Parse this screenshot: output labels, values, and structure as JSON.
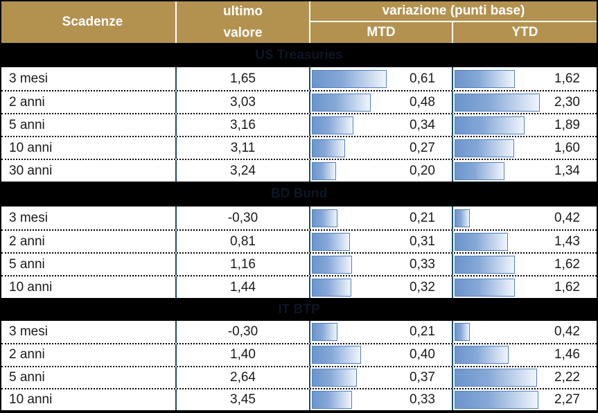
{
  "header": {
    "scadenze": "Scadenze",
    "ultimo_line1": "ultimo",
    "ultimo_line2": "valore",
    "variazione": "variazione (punti base)",
    "mtd": "MTD",
    "ytd": "YTD"
  },
  "colors": {
    "header_bg": "#b3914f",
    "header_text": "#ffffff",
    "band_bg": "#000000",
    "band_text": "#0d1626",
    "divider": "#1b4a68",
    "bar_border": "#4f81bd",
    "bar_gradient_start": "#6b95cd",
    "bar_gradient_end": "#f0f5fc",
    "row_text": "#1a1a1a"
  },
  "sections": [
    {
      "title": "US Treasuries",
      "rows": [
        {
          "scadenza": "3 mesi",
          "ultimo": "1,65",
          "mtd_label": "0,61",
          "mtd": 0.61,
          "ytd_label": "1,62",
          "ytd": 1.62
        },
        {
          "scadenza": "2 anni",
          "ultimo": "3,03",
          "mtd_label": "0,48",
          "mtd": 0.48,
          "ytd_label": "2,30",
          "ytd": 2.3
        },
        {
          "scadenza": "5 anni",
          "ultimo": "3,16",
          "mtd_label": "0,34",
          "mtd": 0.34,
          "ytd_label": "1,89",
          "ytd": 1.89
        },
        {
          "scadenza": "10 anni",
          "ultimo": "3,11",
          "mtd_label": "0,27",
          "mtd": 0.27,
          "ytd_label": "1,60",
          "ytd": 1.6
        },
        {
          "scadenza": "30 anni",
          "ultimo": "3,24",
          "mtd_label": "0,20",
          "mtd": 0.2,
          "ytd_label": "1,34",
          "ytd": 1.34
        }
      ]
    },
    {
      "title": "BD Bund",
      "rows": [
        {
          "scadenza": "3 mesi",
          "ultimo": "-0,30",
          "mtd_label": "0,21",
          "mtd": 0.21,
          "ytd_label": "0,42",
          "ytd": 0.42
        },
        {
          "scadenza": "2 anni",
          "ultimo": "0,81",
          "mtd_label": "0,31",
          "mtd": 0.31,
          "ytd_label": "1,43",
          "ytd": 1.43
        },
        {
          "scadenza": "5 anni",
          "ultimo": "1,16",
          "mtd_label": "0,33",
          "mtd": 0.33,
          "ytd_label": "1,62",
          "ytd": 1.62
        },
        {
          "scadenza": "10 anni",
          "ultimo": "1,44",
          "mtd_label": "0,32",
          "mtd": 0.32,
          "ytd_label": "1,62",
          "ytd": 1.62
        }
      ]
    },
    {
      "title": "IT BTP",
      "rows": [
        {
          "scadenza": "3 mesi",
          "ultimo": "-0,30",
          "mtd_label": "0,21",
          "mtd": 0.21,
          "ytd_label": "0,42",
          "ytd": 0.42
        },
        {
          "scadenza": "2 anni",
          "ultimo": "1,40",
          "mtd_label": "0,40",
          "mtd": 0.4,
          "ytd_label": "1,46",
          "ytd": 1.46
        },
        {
          "scadenza": "5 anni",
          "ultimo": "2,64",
          "mtd_label": "0,37",
          "mtd": 0.37,
          "ytd_label": "2,22",
          "ytd": 2.22
        },
        {
          "scadenza": "10 anni",
          "ultimo": "3,45",
          "mtd_label": "0,33",
          "mtd": 0.33,
          "ytd_label": "2,27",
          "ytd": 2.27
        }
      ]
    }
  ],
  "chart_data": {
    "type": "table",
    "title": "Scadenze — ultimo valore e variazione (punti base)",
    "columns": [
      "Scadenze",
      "ultimo valore",
      "variazione (punti base) MTD",
      "variazione (punti base) YTD"
    ],
    "decimal_separator": ",",
    "groups": [
      {
        "name": "US Treasuries",
        "rows": [
          [
            "3 mesi",
            1.65,
            0.61,
            1.62
          ],
          [
            "2 anni",
            3.03,
            0.48,
            2.3
          ],
          [
            "5 anni",
            3.16,
            0.34,
            1.89
          ],
          [
            "10 anni",
            3.11,
            0.27,
            1.6
          ],
          [
            "30 anni",
            3.24,
            0.2,
            1.34
          ]
        ]
      },
      {
        "name": "BD Bund",
        "rows": [
          [
            "3 mesi",
            -0.3,
            0.21,
            0.42
          ],
          [
            "2 anni",
            0.81,
            0.31,
            1.43
          ],
          [
            "5 anni",
            1.16,
            0.33,
            1.62
          ],
          [
            "10 anni",
            1.44,
            0.32,
            1.62
          ]
        ]
      },
      {
        "name": "IT BTP",
        "rows": [
          [
            "3 mesi",
            -0.3,
            0.21,
            0.42
          ],
          [
            "2 anni",
            1.4,
            0.4,
            1.46
          ],
          [
            "5 anni",
            2.64,
            0.37,
            2.22
          ],
          [
            "10 anni",
            3.45,
            0.33,
            2.27
          ]
        ]
      }
    ],
    "bar_columns": {
      "MTD": {
        "max": 0.61,
        "scale_note": "in-cell horizontal data bars, blue gradient, scaled to column max"
      },
      "YTD": {
        "max": 2.3,
        "scale_note": "in-cell horizontal data bars, blue gradient, scaled to column max"
      }
    },
    "legend_position": "none",
    "grid": "dotted row separators, solid dark-blue column separators"
  }
}
